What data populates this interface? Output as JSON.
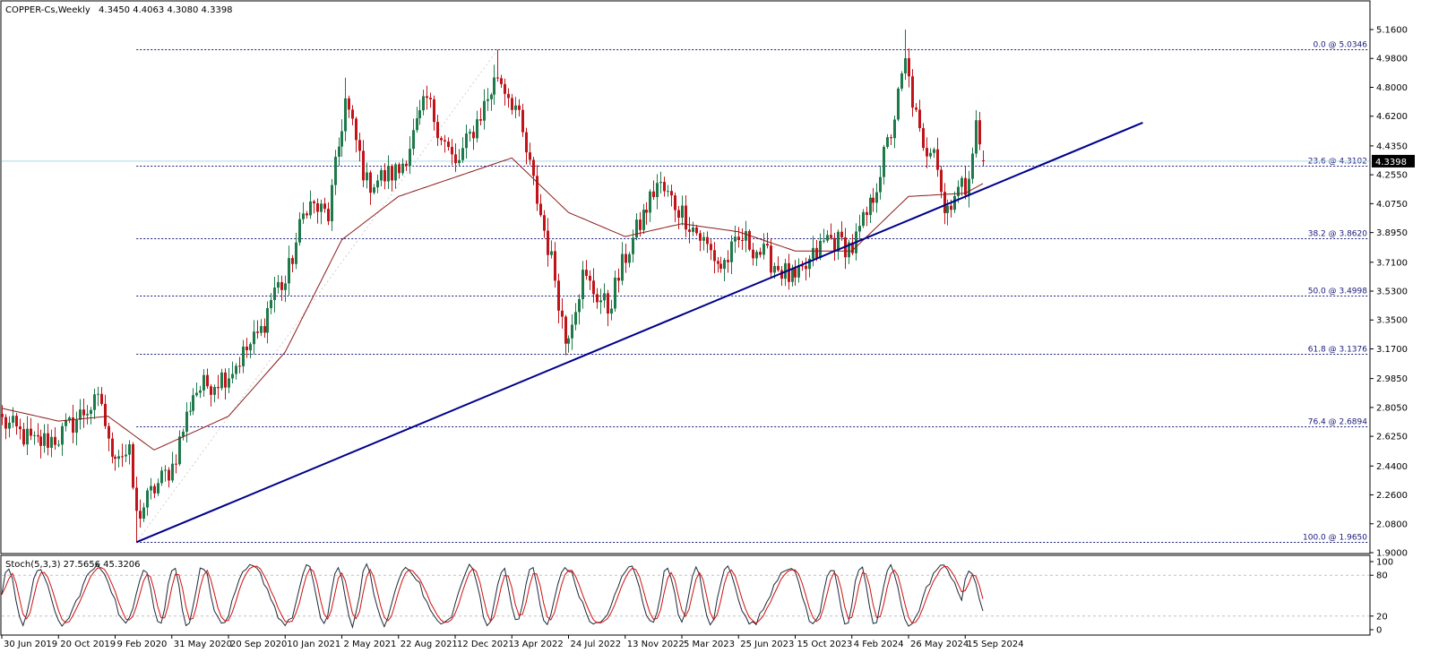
{
  "header": {
    "symbol": "COPPER-Cs,Weekly",
    "ohlc": "4.3450 4.4063 4.3080 4.3398"
  },
  "price_axis": {
    "ticks": [
      "5.1600",
      "4.9800",
      "4.8000",
      "4.6200",
      "4.4350",
      "4.2550",
      "4.0750",
      "3.8950",
      "3.7100",
      "3.5300",
      "3.3500",
      "3.1700",
      "2.9850",
      "2.8050",
      "2.6250",
      "2.4400",
      "2.2600",
      "2.0800",
      "1.9000"
    ],
    "current_price_label": "4.3398"
  },
  "time_axis": {
    "labels": [
      "30 Jun 2019",
      "20 Oct 2019",
      "9 Feb 2020",
      "31 May 2020",
      "20 Sep 2020",
      "10 Jan 2021",
      "2 May 2021",
      "22 Aug 2021",
      "12 Dec 2021",
      "3 Apr 2022",
      "24 Jul 2022",
      "13 Nov 2022",
      "5 Mar 2023",
      "25 Jun 2023",
      "15 Oct 2023",
      "4 Feb 2024",
      "26 May 2024",
      "15 Sep 2024"
    ]
  },
  "fibonacci": {
    "levels": [
      {
        "label": "0.0 @ 5.0346",
        "price": 5.0346
      },
      {
        "label": "23.6 @ 4.3102",
        "price": 4.3102
      },
      {
        "label": "38.2 @ 3.8620",
        "price": 3.862
      },
      {
        "label": "50.0 @ 3.4998",
        "price": 3.4998
      },
      {
        "label": "61.8 @ 3.1376",
        "price": 3.1376
      },
      {
        "label": "76.4 @ 2.6894",
        "price": 2.6894
      },
      {
        "label": "100.0 @ 1.9650",
        "price": 1.965
      }
    ]
  },
  "stochastic": {
    "label": "Stoch(5,3,3) 27.5656 45.3206",
    "ticks": [
      "100",
      "80",
      "20",
      "0"
    ]
  },
  "colors": {
    "bull": "#1e7a4a",
    "bear": "#c0141a",
    "ma": "#8b1a1a",
    "trendline": "#00008b",
    "fib": "#1a1a7a",
    "stoch_main": "#1a2a3a",
    "stoch_signal": "#d01010",
    "current_price_line": "#add8e6"
  },
  "chart_data": {
    "type": "candlestick",
    "title": "COPPER-Cs,Weekly",
    "ylim": [
      1.9,
      5.16
    ],
    "x_range": [
      "2019-06-30",
      "2024-10-20"
    ],
    "last_close": 4.3398,
    "anchors": [
      {
        "date": "2019-06-30",
        "close": 2.72
      },
      {
        "date": "2019-09-01",
        "close": 2.58
      },
      {
        "date": "2019-10-20",
        "close": 2.62
      },
      {
        "date": "2019-12-15",
        "close": 2.8
      },
      {
        "date": "2020-01-12",
        "close": 2.84
      },
      {
        "date": "2020-01-26",
        "close": 2.56
      },
      {
        "date": "2020-03-08",
        "close": 2.5
      },
      {
        "date": "2020-03-22",
        "close": 2.12
      },
      {
        "date": "2020-04-26",
        "close": 2.3
      },
      {
        "date": "2020-05-31",
        "close": 2.44
      },
      {
        "date": "2020-07-12",
        "close": 2.9
      },
      {
        "date": "2020-09-20",
        "close": 3.02
      },
      {
        "date": "2020-11-22",
        "close": 3.28
      },
      {
        "date": "2020-12-20",
        "close": 3.55
      },
      {
        "date": "2021-01-10",
        "close": 3.58
      },
      {
        "date": "2021-02-21",
        "close": 4.08
      },
      {
        "date": "2021-04-04",
        "close": 4.0
      },
      {
        "date": "2021-05-09",
        "close": 4.72
      },
      {
        "date": "2021-06-20",
        "close": 4.2
      },
      {
        "date": "2021-08-22",
        "close": 4.28
      },
      {
        "date": "2021-10-17",
        "close": 4.72
      },
      {
        "date": "2021-12-12",
        "close": 4.3
      },
      {
        "date": "2022-03-06",
        "close": 4.88
      },
      {
        "date": "2022-04-10",
        "close": 4.68
      },
      {
        "date": "2022-05-15",
        "close": 4.2
      },
      {
        "date": "2022-06-26",
        "close": 3.62
      },
      {
        "date": "2022-07-17",
        "close": 3.22
      },
      {
        "date": "2022-08-21",
        "close": 3.62
      },
      {
        "date": "2022-10-09",
        "close": 3.42
      },
      {
        "date": "2022-11-13",
        "close": 3.75
      },
      {
        "date": "2023-01-15",
        "close": 4.2
      },
      {
        "date": "2023-03-05",
        "close": 4.02
      },
      {
        "date": "2023-05-21",
        "close": 3.68
      },
      {
        "date": "2023-07-02",
        "close": 3.86
      },
      {
        "date": "2023-08-27",
        "close": 3.72
      },
      {
        "date": "2023-10-15",
        "close": 3.58
      },
      {
        "date": "2023-12-17",
        "close": 3.86
      },
      {
        "date": "2024-02-04",
        "close": 3.8
      },
      {
        "date": "2024-03-10",
        "close": 4.05
      },
      {
        "date": "2024-04-21",
        "close": 4.52
      },
      {
        "date": "2024-05-19",
        "close": 4.95
      },
      {
        "date": "2024-06-23",
        "close": 4.38
      },
      {
        "date": "2024-07-14",
        "close": 4.48
      },
      {
        "date": "2024-08-04",
        "close": 4.02
      },
      {
        "date": "2024-08-25",
        "close": 4.15
      },
      {
        "date": "2024-09-15",
        "close": 4.18
      },
      {
        "date": "2024-10-06",
        "close": 4.55
      },
      {
        "date": "2024-10-20",
        "close": 4.3398
      }
    ],
    "extremes": [
      {
        "date": "2020-03-22",
        "low": 1.965
      },
      {
        "date": "2021-05-09",
        "high": 4.86
      },
      {
        "date": "2022-03-06",
        "high": 5.0346
      },
      {
        "date": "2022-07-17",
        "low": 3.13
      },
      {
        "date": "2024-05-19",
        "high": 5.16
      }
    ],
    "moving_average": {
      "anchors": [
        {
          "date": "2019-06-30",
          "value": 2.8
        },
        {
          "date": "2019-10-20",
          "value": 2.72
        },
        {
          "date": "2020-01-26",
          "value": 2.75
        },
        {
          "date": "2020-04-26",
          "value": 2.54
        },
        {
          "date": "2020-09-20",
          "value": 2.75
        },
        {
          "date": "2021-01-10",
          "value": 3.15
        },
        {
          "date": "2021-05-02",
          "value": 3.85
        },
        {
          "date": "2021-08-22",
          "value": 4.12
        },
        {
          "date": "2021-12-12",
          "value": 4.24
        },
        {
          "date": "2022-04-03",
          "value": 4.36
        },
        {
          "date": "2022-07-24",
          "value": 4.02
        },
        {
          "date": "2022-11-13",
          "value": 3.87
        },
        {
          "date": "2023-03-05",
          "value": 3.95
        },
        {
          "date": "2023-06-25",
          "value": 3.9
        },
        {
          "date": "2023-10-15",
          "value": 3.78
        },
        {
          "date": "2024-02-04",
          "value": 3.78
        },
        {
          "date": "2024-05-26",
          "value": 4.12
        },
        {
          "date": "2024-09-15",
          "value": 4.14
        },
        {
          "date": "2024-10-20",
          "value": 4.2
        }
      ]
    },
    "trendline": {
      "from": {
        "date": "2020-03-22",
        "price": 1.965
      },
      "to": {
        "date": "2025-09-01",
        "price": 4.58
      }
    },
    "stochastic": {
      "k": 27.5656,
      "d": 45.3206,
      "levels": [
        20,
        80
      ],
      "ylim": [
        0,
        100
      ]
    }
  }
}
